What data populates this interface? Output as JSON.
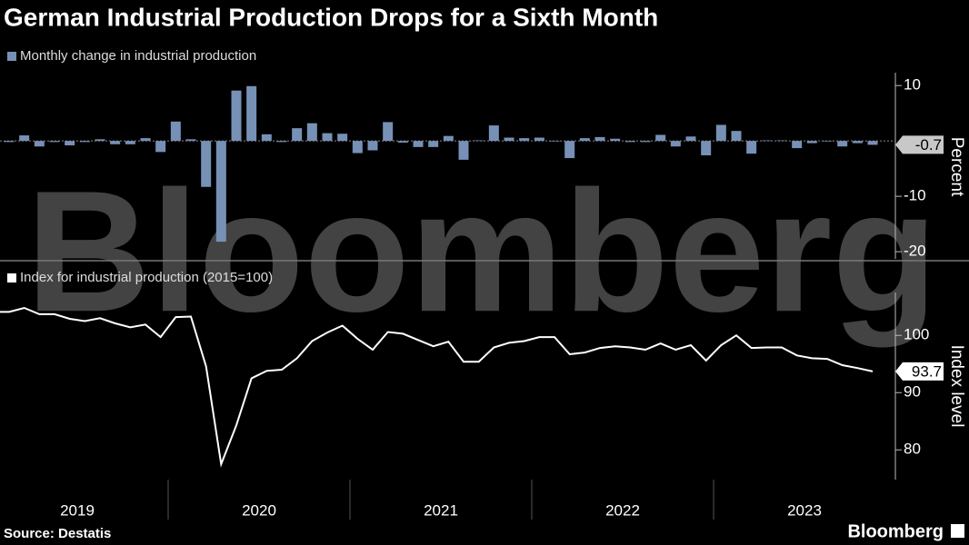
{
  "watermark": "Bloomberg",
  "logo": "Bloomberg",
  "chart_data": [
    {
      "type": "bar",
      "title": "German Industrial Production Drops for a Sixth Month",
      "source": "Source: Destatis",
      "ylabel": "Percent",
      "ylim": [
        -21.3,
        12
      ],
      "yticks": [
        -20,
        -10,
        10
      ],
      "x": [
        "2019-01",
        "2019-02",
        "2019-03",
        "2019-04",
        "2019-05",
        "2019-06",
        "2019-07",
        "2019-08",
        "2019-09",
        "2019-10",
        "2019-11",
        "2019-12",
        "2020-01",
        "2020-02",
        "2020-03",
        "2020-04",
        "2020-05",
        "2020-06",
        "2020-07",
        "2020-08",
        "2020-09",
        "2020-10",
        "2020-11",
        "2020-12",
        "2021-01",
        "2021-02",
        "2021-03",
        "2021-04",
        "2021-05",
        "2021-06",
        "2021-07",
        "2021-08",
        "2021-09",
        "2021-10",
        "2021-11",
        "2021-12",
        "2022-01",
        "2022-02",
        "2022-03",
        "2022-04",
        "2022-05",
        "2022-06",
        "2022-07",
        "2022-08",
        "2022-09",
        "2022-10",
        "2022-11",
        "2022-12",
        "2023-01",
        "2023-02",
        "2023-03",
        "2023-04",
        "2023-05",
        "2023-06",
        "2023-07",
        "2023-08",
        "2023-09",
        "2023-10",
        "2023-11"
      ],
      "series": [
        {
          "name": "Monthly change in industrial production",
          "color": "#7790b6",
          "values": [
            0.2,
            -0.2,
            1.0,
            -1.0,
            -0.2,
            -0.8,
            -0.2,
            0.3,
            -0.6,
            -0.6,
            0.5,
            -2.0,
            3.5,
            0.3,
            -8.3,
            -18.2,
            9.1,
            9.9,
            1.2,
            -0.2,
            2.3,
            3.2,
            1.4,
            1.3,
            -2.2,
            -1.7,
            3.4,
            -0.3,
            -1.1,
            -1.1,
            0.9,
            -3.4,
            0.1,
            2.8,
            0.6,
            0.5,
            0.6,
            -0.1,
            -3.1,
            0.5,
            0.7,
            0.4,
            -0.2,
            -0.2,
            1.1,
            -1.0,
            0.8,
            -2.6,
            2.9,
            1.8,
            -2.3,
            0.1,
            0.1,
            -1.3,
            -0.4,
            -0.1,
            -1.0,
            -0.4,
            -0.7
          ]
        }
      ]
    },
    {
      "type": "line",
      "ylabel": "Index level",
      "ylim": [
        74.8,
        107.5
      ],
      "yticks": [
        80,
        90,
        100
      ],
      "xticks": [
        "2019",
        "2020",
        "2021",
        "2022",
        "2023"
      ],
      "x": [
        "2019-01",
        "2019-02",
        "2019-03",
        "2019-04",
        "2019-05",
        "2019-06",
        "2019-07",
        "2019-08",
        "2019-09",
        "2019-10",
        "2019-11",
        "2019-12",
        "2020-01",
        "2020-02",
        "2020-03",
        "2020-04",
        "2020-05",
        "2020-06",
        "2020-07",
        "2020-08",
        "2020-09",
        "2020-10",
        "2020-11",
        "2020-12",
        "2021-01",
        "2021-02",
        "2021-03",
        "2021-04",
        "2021-05",
        "2021-06",
        "2021-07",
        "2021-08",
        "2021-09",
        "2021-10",
        "2021-11",
        "2021-12",
        "2022-01",
        "2022-02",
        "2022-03",
        "2022-04",
        "2022-05",
        "2022-06",
        "2022-07",
        "2022-08",
        "2022-09",
        "2022-10",
        "2022-11",
        "2022-12",
        "2023-01",
        "2023-02",
        "2023-03",
        "2023-04",
        "2023-05",
        "2023-06",
        "2023-07",
        "2023-08",
        "2023-09",
        "2023-10",
        "2023-11"
      ],
      "series": [
        {
          "name": "Index for industrial production (2015=100)",
          "color": "#ffffff",
          "values": [
            104.1,
            104.1,
            104.8,
            103.7,
            103.7,
            102.9,
            102.5,
            103.0,
            102.1,
            101.4,
            101.9,
            99.7,
            103.2,
            103.3,
            94.6,
            77.5,
            84.3,
            92.5,
            93.8,
            94.0,
            96.0,
            99.0,
            100.5,
            101.7,
            99.4,
            97.5,
            100.6,
            100.3,
            99.2,
            98.1,
            98.9,
            95.4,
            95.4,
            97.9,
            98.7,
            99.0,
            99.7,
            99.7,
            96.7,
            97.0,
            97.8,
            98.1,
            97.9,
            97.5,
            98.6,
            97.5,
            98.3,
            95.6,
            98.3,
            100.0,
            97.8,
            97.9,
            97.9,
            96.5,
            96.0,
            95.9,
            94.8,
            94.3,
            93.7
          ]
        }
      ]
    }
  ]
}
